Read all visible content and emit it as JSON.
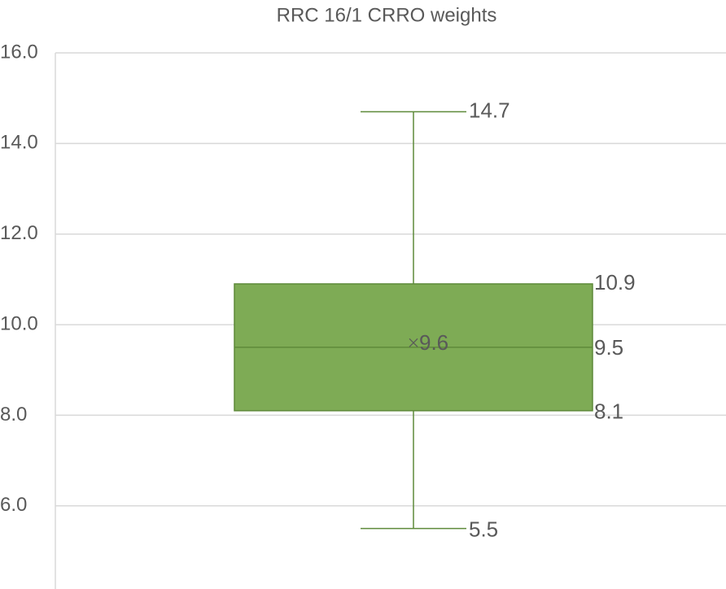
{
  "chart_data": {
    "type": "box",
    "title": "RRC 16/1 CRRO weights",
    "boxes": [
      {
        "min": 5.5,
        "q1": 8.1,
        "median": 9.5,
        "q3": 10.9,
        "max": 14.7,
        "mean": 9.6
      }
    ],
    "color": "#7eab55",
    "edge_color": "#5e8a3a",
    "ylim": [
      4.2,
      16
    ],
    "yticks": [
      {
        "value": 6,
        "label": "6.0"
      },
      {
        "value": 8,
        "label": "8.0"
      },
      {
        "value": 10,
        "label": "10.0"
      },
      {
        "value": 12,
        "label": "12.0"
      },
      {
        "value": 14,
        "label": "14.0"
      },
      {
        "value": 16,
        "label": "16.0"
      }
    ],
    "grid": true
  }
}
